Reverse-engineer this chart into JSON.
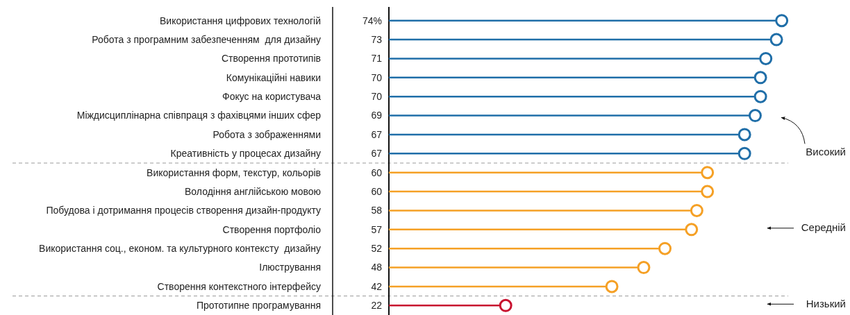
{
  "chart_data": {
    "type": "lollipop",
    "orientation": "horizontal",
    "categories": [
      "Використання цифрових технологій",
      "Робота з програмним забезпеченням  для дизайну",
      "Створення прототипів",
      "Комунікаційні навики",
      "Фокус на користувача",
      "Міждисциплінарна співпраця з фахівцями інших сфер",
      "Робота з зображеннями",
      "Креативність у процесах дизайну",
      "Використання форм, текстур, кольорів",
      "Володіння англійською мовою",
      "Побудова і дотримання процесів створення дизайн-продукту",
      "Створення портфоліо",
      "Використання соц., економ. та культурного контексту  дизайну",
      "Ілюстрування",
      "Створення контекстного інтерфейсу",
      "Прототипне програмування"
    ],
    "values": [
      74,
      73,
      71,
      70,
      70,
      69,
      67,
      67,
      60,
      60,
      58,
      57,
      52,
      48,
      42,
      22
    ],
    "value_labels": [
      "74%",
      "73",
      "71",
      "70",
      "70",
      "69",
      "67",
      "67",
      "60",
      "60",
      "58",
      "57",
      "52",
      "48",
      "42",
      "22"
    ],
    "colors": [
      "#1f6ea8",
      "#1f6ea8",
      "#1f6ea8",
      "#1f6ea8",
      "#1f6ea8",
      "#1f6ea8",
      "#1f6ea8",
      "#1f6ea8",
      "#f5a025",
      "#f5a025",
      "#f5a025",
      "#f5a025",
      "#f5a025",
      "#f5a025",
      "#f5a025",
      "#c8102e"
    ],
    "marker": "circle",
    "grid": "y",
    "tick_labels": "y",
    "annotations": [
      "Високий",
      "Середній",
      "Низький"
    ]
  }
}
